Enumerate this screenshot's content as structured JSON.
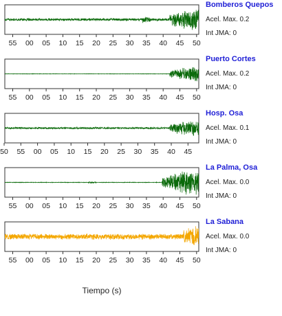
{
  "chart_data": {
    "type": "line",
    "xlabel": "Tiempo (s)",
    "x_ticks_default": [
      "55",
      "00",
      "05",
      "10",
      "15",
      "20",
      "25",
      "30",
      "35",
      "40",
      "45",
      "50"
    ],
    "x_ticks_panel3": [
      "50",
      "55",
      "00",
      "05",
      "10",
      "15",
      "20",
      "25",
      "30",
      "35",
      "40",
      "45"
    ],
    "panels": [
      {
        "station": "Bomberos Quepos",
        "acel_label": "Acel. Max. 0.2",
        "jma_label": "Int JMA: 0",
        "color": "#0a6a0a",
        "onset": 0.85,
        "pre_amp": 0.1,
        "post_amp": 0.85,
        "bump_at": 0.73
      },
      {
        "station": "Puerto Cortes",
        "acel_label": "Acel. Max. 0.2",
        "jma_label": "Int JMA: 0",
        "color": "#0a6a0a",
        "onset": 0.85,
        "pre_amp": 0.015,
        "post_amp": 0.55,
        "bump_at": -1
      },
      {
        "station": "Hosp. Osa",
        "acel_label": "Acel. Max. 0.1",
        "jma_label": "Int JMA: 0",
        "color": "#0a6a0a",
        "onset": 0.85,
        "pre_amp": 0.07,
        "post_amp": 0.6,
        "bump_at": -1
      },
      {
        "station": "La Palma, Osa",
        "acel_label": "Acel. Max. 0.0",
        "jma_label": "Int JMA: 0",
        "color": "#0a6a0a",
        "onset": 0.81,
        "pre_amp": 0.02,
        "post_amp": 0.9,
        "bump_at": 0.45
      },
      {
        "station": "La Sabana",
        "acel_label": "Acel. Max. 0.0",
        "jma_label": "Int JMA: 0",
        "color": "#f4a700",
        "onset": 0.92,
        "pre_amp": 0.22,
        "post_amp": 0.8,
        "bump_at": -1
      }
    ]
  }
}
